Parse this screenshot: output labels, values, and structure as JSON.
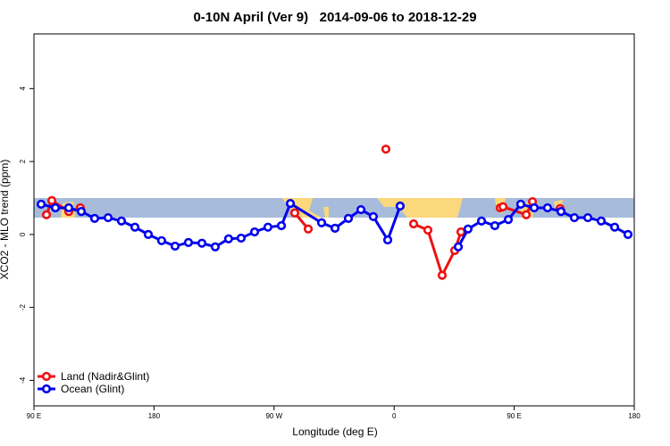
{
  "chart_data": {
    "type": "line",
    "title": "0-10N April (Ver 9)   2014-09-06 to 2018-12-29",
    "x_label": "Longitude (deg E)",
    "y_label": "XCO2 - MLO trend (ppm)",
    "xlim": [
      90,
      540
    ],
    "xticks": [
      {
        "value": 90,
        "label": "90 E"
      },
      {
        "value": 180,
        "label": "180"
      },
      {
        "value": 270,
        "label": "90 W"
      },
      {
        "value": 360,
        "label": "0"
      },
      {
        "value": 450,
        "label": "90 E"
      },
      {
        "value": 540,
        "label": "180"
      }
    ],
    "ylim": [
      -4.7,
      5.5
    ],
    "yticks": [
      -4,
      -2,
      0,
      2,
      4
    ],
    "legend": "bottom-left",
    "series": [
      {
        "name": "Land (Nadir&Glint)",
        "color": "#ee1111",
        "x": [
          99.4,
          103.4,
          116.1,
          124.8,
          null,
          285.5,
          295.6,
          null,
          353.8,
          null,
          374.6,
          385.3,
          396.0,
          405.4,
          410.1,
          null,
          439.5,
          441.6,
          459.0,
          463.7,
          null,
          484.4
        ],
        "values": [
          0.54,
          0.93,
          0.63,
          0.73,
          null,
          0.59,
          0.15,
          null,
          2.34,
          null,
          0.29,
          0.12,
          -1.12,
          -0.44,
          0.07,
          null,
          0.73,
          0.76,
          0.54,
          0.9,
          null,
          0.71
        ]
      },
      {
        "name": "Ocean (Glint)",
        "color": "#0000ee",
        "x": [
          95.4,
          106.1,
          116.1,
          125.5,
          135.5,
          145.6,
          155.6,
          165.7,
          175.7,
          185.7,
          195.8,
          205.8,
          215.9,
          225.9,
          235.9,
          245.3,
          255.4,
          265.4,
          275.5,
          282.2,
          305.6,
          315.7,
          325.7,
          335.1,
          344.4,
          355.2,
          364.5,
          null,
          408.1,
          415.4,
          425.5,
          435.5,
          445.6,
          454.9,
          465.0,
          475.0,
          485.1,
          495.1,
          505.2,
          515.2,
          525.3,
          535.3
        ],
        "values": [
          0.83,
          0.73,
          0.73,
          0.63,
          0.44,
          0.46,
          0.37,
          0.2,
          0,
          -0.17,
          -0.32,
          -0.22,
          -0.24,
          -0.34,
          -0.12,
          -0.1,
          0.07,
          0.2,
          0.24,
          0.85,
          0.32,
          0.17,
          0.44,
          0.68,
          0.49,
          -0.15,
          0.78,
          null,
          -0.34,
          0.15,
          0.37,
          0.24,
          0.41,
          0.83,
          0.73,
          0.73,
          0.63,
          0.46,
          0.46,
          0.37,
          0.2,
          0
        ]
      }
    ]
  }
}
